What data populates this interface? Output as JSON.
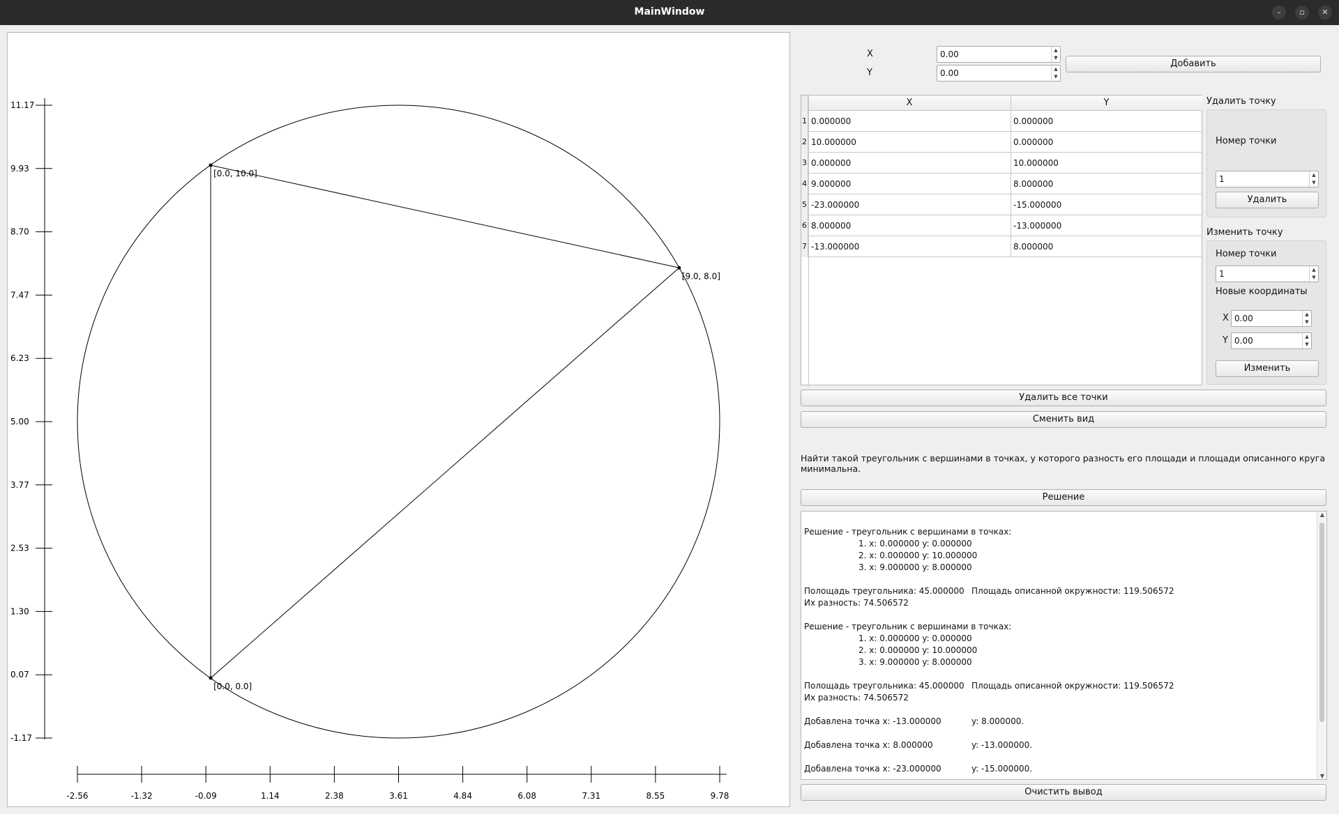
{
  "window": {
    "title": "MainWindow"
  },
  "plot": {
    "y_ticks": [
      "11.17",
      "9.93",
      "8.70",
      "7.47",
      "6.23",
      "5.00",
      "3.77",
      "2.53",
      "1.30",
      "0.07",
      "-1.17"
    ],
    "x_ticks": [
      "-2.56",
      "-1.32",
      "-0.09",
      "1.14",
      "2.38",
      "3.61",
      "4.84",
      "6.08",
      "7.31",
      "8.55",
      "9.78"
    ],
    "x_range": [
      -2.56,
      9.78
    ],
    "y_range": [
      -1.17,
      11.17
    ],
    "triangle": [
      {
        "x": 0.0,
        "y": 10.0,
        "label": "[0.0, 10.0]"
      },
      {
        "x": 9.0,
        "y": 8.0,
        "label": "[9.0, 8.0]"
      },
      {
        "x": 0.0,
        "y": 0.0,
        "label": "[0.0, 0.0]"
      }
    ],
    "circle": {
      "cx": 3.61,
      "cy": 5.0,
      "r": 6.17
    }
  },
  "input": {
    "x_label": "X",
    "y_label": "Y",
    "x_value": "0.00",
    "y_value": "0.00",
    "add_button": "Добавить"
  },
  "table": {
    "headers": [
      "X",
      "Y"
    ],
    "rows": [
      {
        "num": "1",
        "x": "0.000000",
        "y": "0.000000"
      },
      {
        "num": "2",
        "x": "10.000000",
        "y": "0.000000"
      },
      {
        "num": "3",
        "x": "0.000000",
        "y": "10.000000"
      },
      {
        "num": "4",
        "x": "9.000000",
        "y": "8.000000"
      },
      {
        "num": "5",
        "x": "-23.000000",
        "y": "-15.000000"
      },
      {
        "num": "6",
        "x": "8.000000",
        "y": "-13.000000"
      },
      {
        "num": "7",
        "x": "-13.000000",
        "y": "8.000000"
      }
    ]
  },
  "delete_group": {
    "title": "Удалить точку",
    "number_label": "Номер точки",
    "number_value": "1",
    "button": "Удалить"
  },
  "edit_group": {
    "title": "Изменить точку",
    "number_label": "Номер точки",
    "number_value": "1",
    "new_coords_label": "Новые координаты",
    "x_label": "X",
    "y_label": "Y",
    "x_value": "0.00",
    "y_value": "0.00",
    "button": "Изменить"
  },
  "actions": {
    "delete_all": "Удалить все точки",
    "change_view": "Сменить вид",
    "solve": "Решение",
    "clear_output": "Очистить вывод"
  },
  "task": "Найти такой треугольник с вершинами в точках, у которого разность его площади и площади описанного круга минимальна.",
  "output_lines": [
    {
      "text": "Решение - треугольник с вершинами в точках:",
      "indent": false
    },
    {
      "text": "1. x: 0.000000 y: 0.000000",
      "indent": true
    },
    {
      "text": "2. x: 0.000000 y: 10.000000",
      "indent": true
    },
    {
      "text": "3. x: 9.000000 y: 8.000000",
      "indent": true
    },
    {
      "text": "",
      "indent": false
    },
    {
      "text": "Полощадь треугольника: 45.000000",
      "right": "Площадь описанной окружности: 119.506572",
      "indent": false
    },
    {
      "text": "Их разность: 74.506572",
      "indent": false
    },
    {
      "text": "",
      "indent": false
    },
    {
      "text": "Решение - треугольник с вершинами в точках:",
      "indent": false
    },
    {
      "text": "1. x: 0.000000 y: 0.000000",
      "indent": true
    },
    {
      "text": "2. x: 0.000000 y: 10.000000",
      "indent": true
    },
    {
      "text": "3. x: 9.000000 y: 8.000000",
      "indent": true
    },
    {
      "text": "",
      "indent": false
    },
    {
      "text": "Полощадь треугольника: 45.000000",
      "right": "Площадь описанной окружности: 119.506572",
      "indent": false
    },
    {
      "text": "Их разность: 74.506572",
      "indent": false
    },
    {
      "text": "",
      "indent": false
    },
    {
      "text": "Добавлена точка x: -13.000000",
      "right": "y: 8.000000.",
      "indent": false
    },
    {
      "text": "",
      "indent": false
    },
    {
      "text": "Добавлена точка x: 8.000000",
      "right": "y: -13.000000.",
      "indent": false
    },
    {
      "text": "",
      "indent": false
    },
    {
      "text": "Добавлена точка x: -23.000000",
      "right": "y: -15.000000.",
      "indent": false
    }
  ]
}
